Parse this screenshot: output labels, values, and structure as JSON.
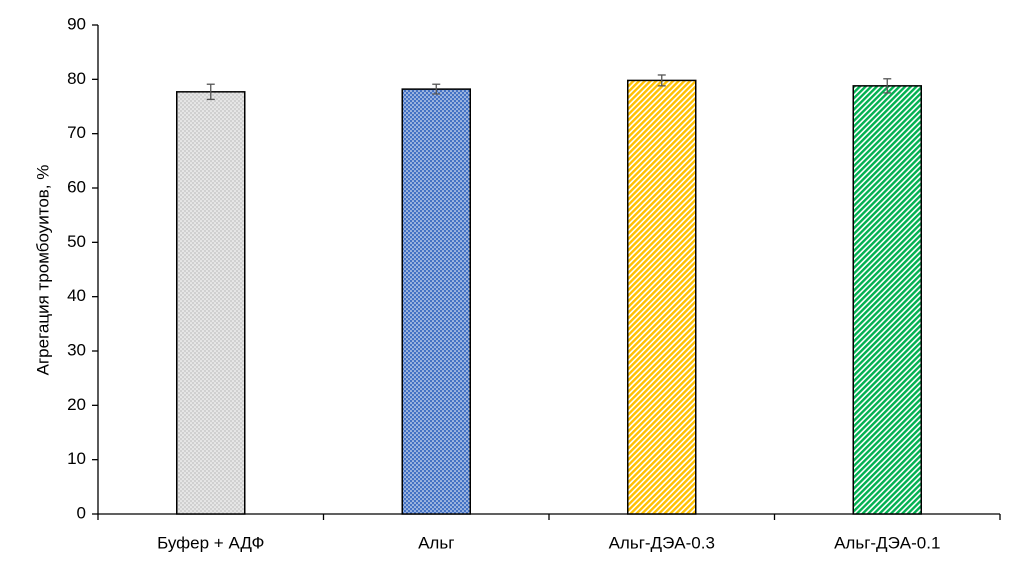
{
  "chart_data": {
    "type": "bar",
    "y_label": "Агрегация тромбоуитов, %",
    "categories": [
      "Буфер + АДФ",
      "Альг",
      "Альг-ДЭА-0.3",
      "Альг-ДЭА-0.1"
    ],
    "values": [
      77.7,
      78.2,
      79.8,
      78.8
    ],
    "errors": [
      1.4,
      0.9,
      1.0,
      1.3
    ],
    "colors": [
      "#d0d0d0",
      "#4472c4",
      "#ffc000",
      "#00b050"
    ],
    "ylim": [
      0,
      90
    ],
    "yticks": [
      0,
      10,
      20,
      30,
      40,
      50,
      60,
      70,
      80,
      90
    ],
    "grid": false
  }
}
